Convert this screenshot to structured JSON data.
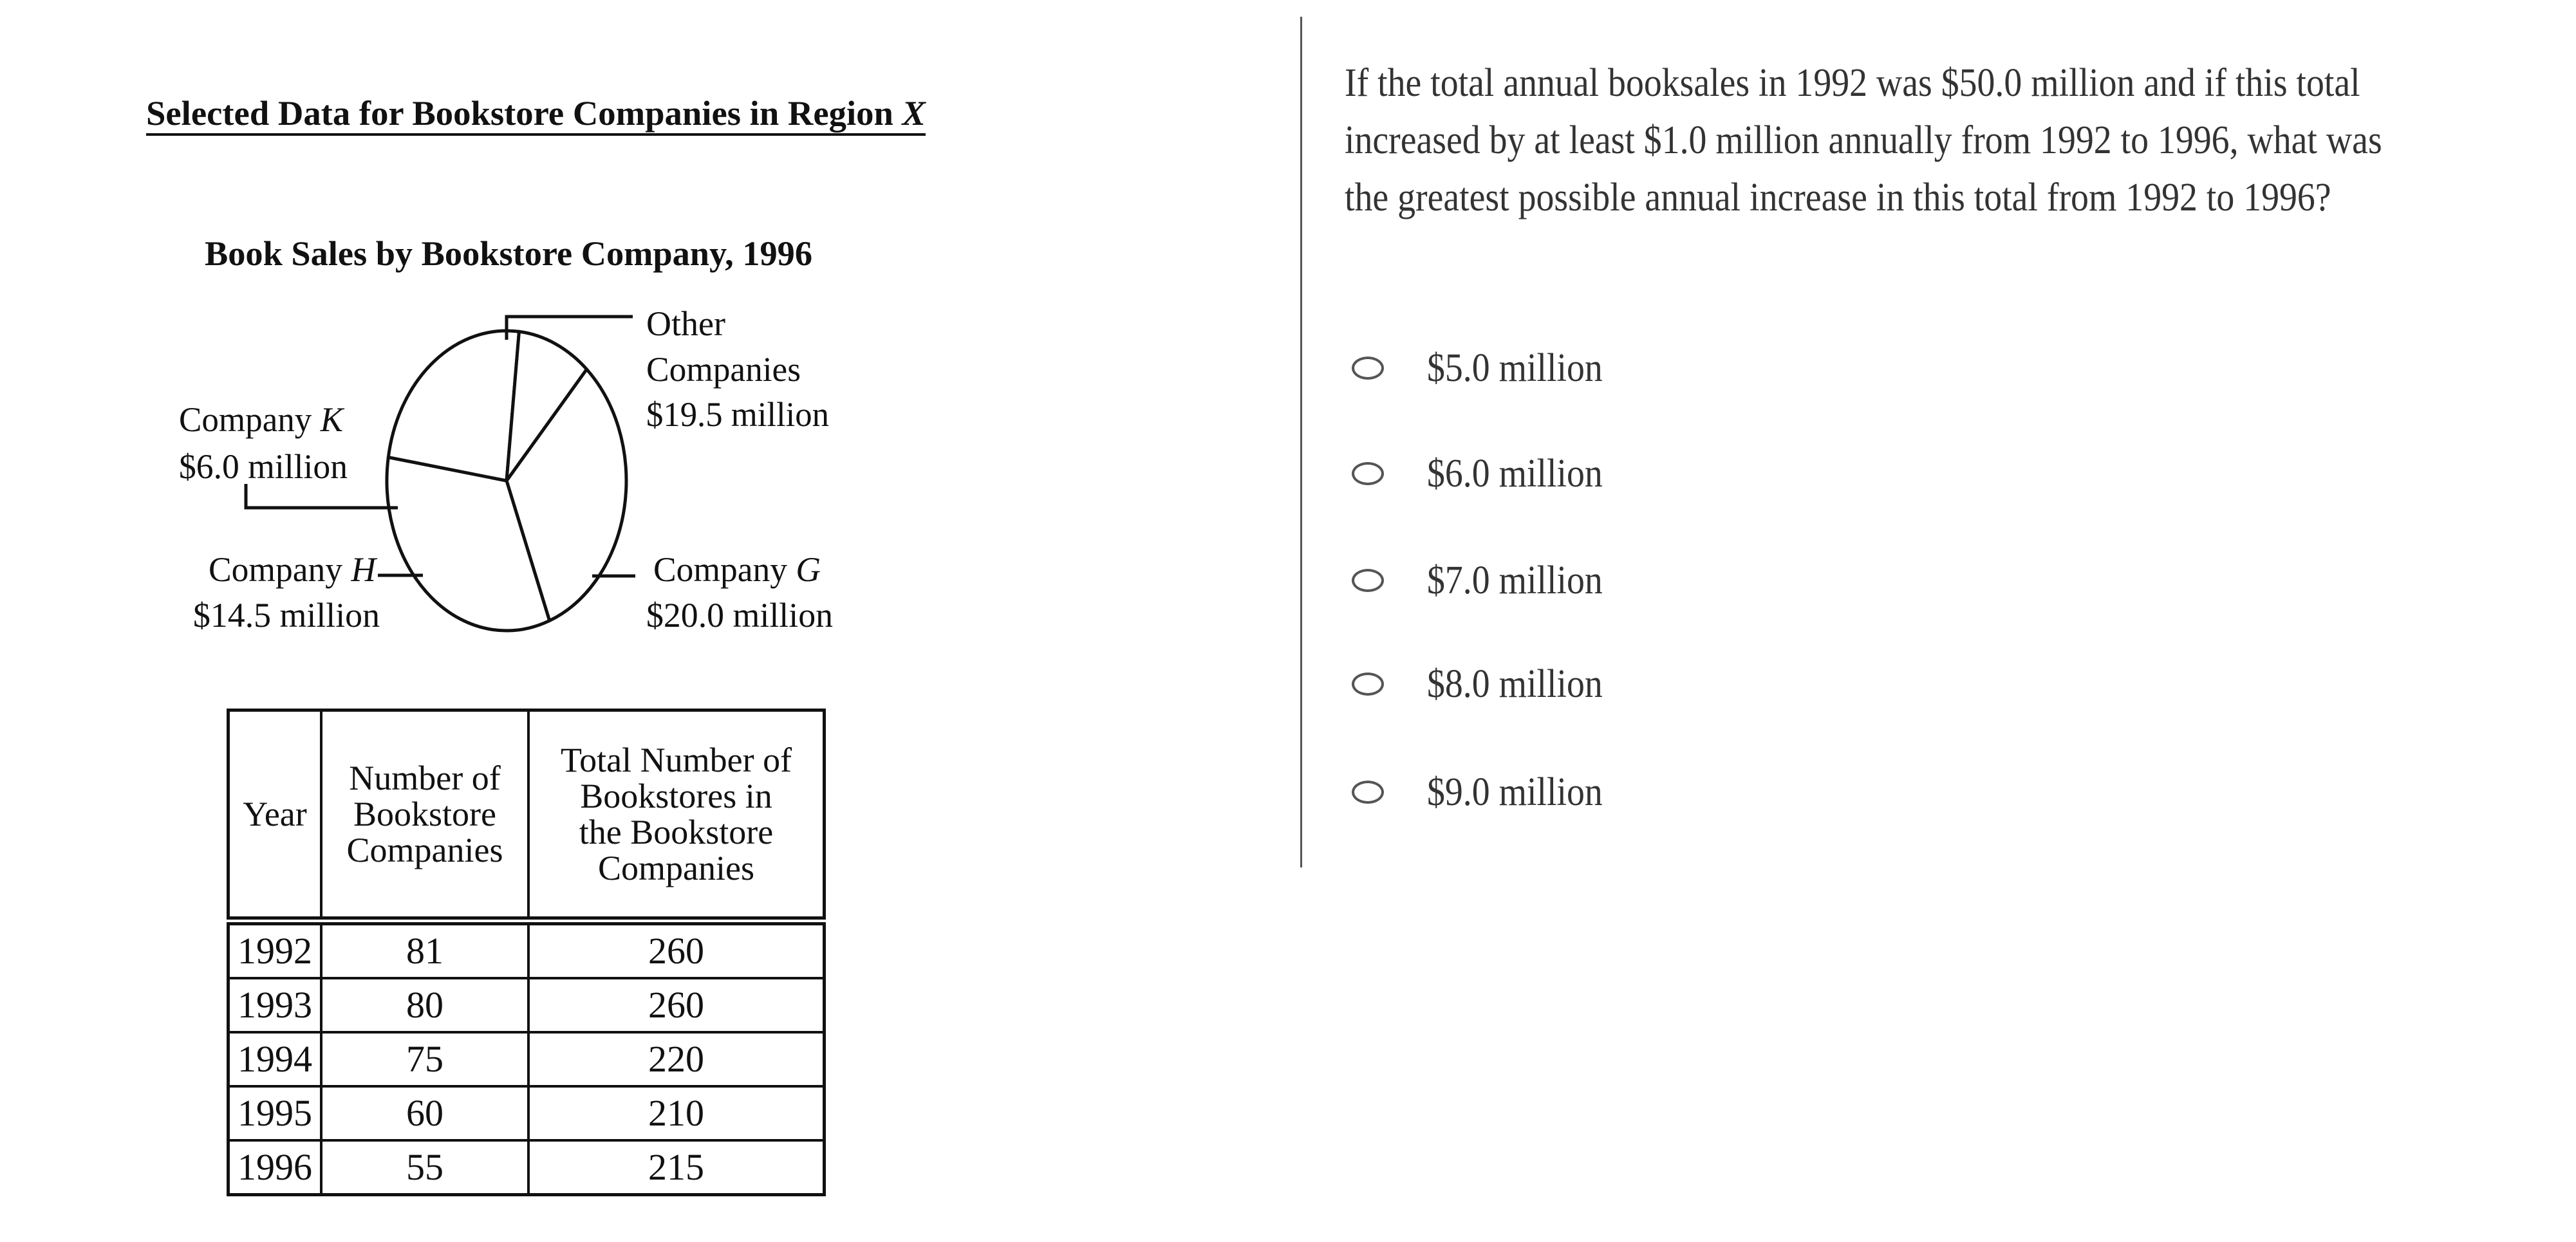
{
  "figure": {
    "title": "Selected Data for Bookstore Companies in Region ",
    "title_region": "X"
  },
  "chart_data": {
    "type": "pie",
    "title": "Book Sales by Bookstore Company, 1996",
    "slices": [
      {
        "label_line1": "Other",
        "label_line2": "Companies",
        "value_label": "$19.5 million",
        "value": 19.5
      },
      {
        "label_line1": "Company ",
        "label_letter": "G",
        "value_label": "$20.0 million",
        "value": 20.0
      },
      {
        "label_line1": "Company ",
        "label_letter": "H",
        "value_label": "$14.5 million",
        "value": 14.5
      },
      {
        "label_line1": "Company ",
        "label_letter": "K",
        "value_label": "$6.0 million",
        "value": 6.0
      }
    ],
    "unit": "million dollars"
  },
  "table": {
    "headers": [
      "Year",
      "Number of Bookstore Companies",
      "Total Number of Bookstores in the Bookstore Companies"
    ],
    "header_lines": [
      [
        "Year"
      ],
      [
        "Number of",
        "Bookstore",
        "Companies"
      ],
      [
        "Total Number of",
        "Bookstores in",
        "the Bookstore",
        "Companies"
      ]
    ],
    "rows": [
      [
        "1992",
        "81",
        "260"
      ],
      [
        "1993",
        "80",
        "260"
      ],
      [
        "1994",
        "75",
        "220"
      ],
      [
        "1995",
        "60",
        "210"
      ],
      [
        "1996",
        "55",
        "215"
      ]
    ]
  },
  "question": {
    "text": "If the total annual booksales in 1992 was $50.0 million and if this total increased by at least $1.0 million annually from 1992 to 1996, what was the greatest possible annual increase in this total from 1992 to 1996?",
    "options": [
      "$5.0 million",
      "$6.0 million",
      "$7.0 million",
      "$8.0 million",
      "$9.0 million"
    ],
    "selected": null
  }
}
